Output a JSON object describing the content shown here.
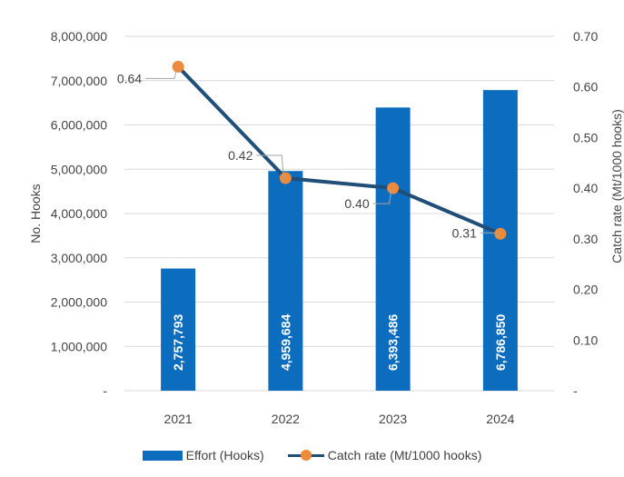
{
  "chart_data": {
    "type": "bar",
    "categories": [
      "2021",
      "2022",
      "2023",
      "2024"
    ],
    "y_left_label": "No. Hooks",
    "y_right_label": "Catch rate (Mt/1000 hooks)",
    "ylim_left": [
      0,
      8000000
    ],
    "ylim_right": [
      0,
      0.7
    ],
    "y_left_ticks": [
      "-",
      "1,000,000",
      "2,000,000",
      "3,000,000",
      "4,000,000",
      "5,000,000",
      "6,000,000",
      "7,000,000",
      "8,000,000"
    ],
    "y_right_ticks": [
      "-",
      "0.10",
      "0.20",
      "0.30",
      "0.40",
      "0.50",
      "0.60",
      "0.70"
    ],
    "grid": true,
    "legend_position": "bottom",
    "series": [
      {
        "name": "Effort (Hooks)",
        "type": "bar",
        "axis": "left",
        "color": "#0c6dbf",
        "values": [
          2757793,
          4959684,
          6393486,
          6786850
        ],
        "data_labels": [
          "2,757,793",
          "4,959,684",
          "6,393,486",
          "6,786,850"
        ]
      },
      {
        "name": "Catch rate (Mt/1000 hooks)",
        "type": "line",
        "axis": "right",
        "color": "#1f4e79",
        "marker_color": "#ee8a3c",
        "values": [
          0.64,
          0.42,
          0.4,
          0.31
        ],
        "data_labels": [
          "0.64",
          "0.42",
          "0.40",
          "0.31"
        ]
      }
    ]
  }
}
